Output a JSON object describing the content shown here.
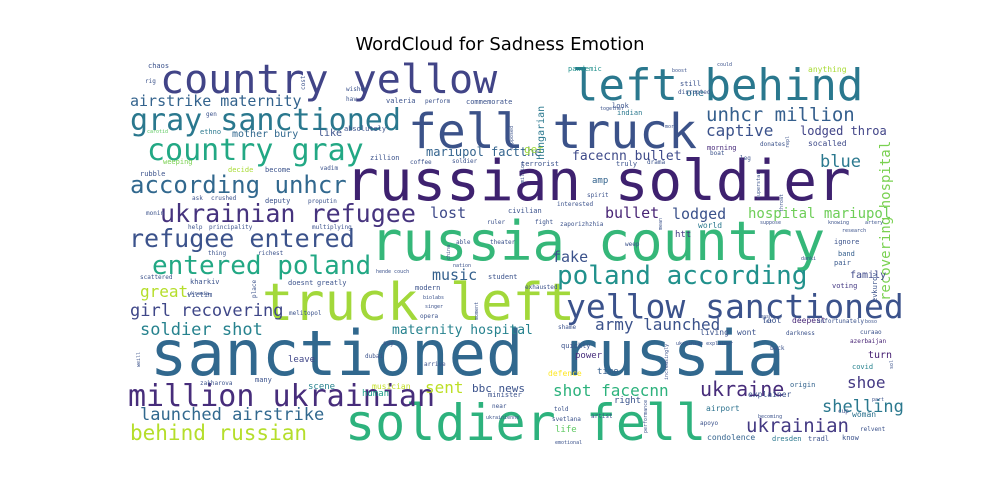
{
  "chart_data": {
    "type": "wordcloud",
    "title": "WordCloud for Sadness Emotion",
    "colormap": "viridis",
    "background": "#ffffff",
    "words": [
      {
        "text": "sanctioned russia",
        "weight": 1.0,
        "color": "#31688e"
      },
      {
        "text": "russian soldier",
        "weight": 0.92,
        "color": "#3e216f"
      },
      {
        "text": "russia country",
        "weight": 0.9,
        "color": "#35b779"
      },
      {
        "text": "truck left",
        "weight": 0.86,
        "color": "#a2d83a"
      },
      {
        "text": "soldier fell",
        "weight": 0.83,
        "color": "#2db27d"
      },
      {
        "text": "fell truck",
        "weight": 0.78,
        "color": "#3b5289"
      },
      {
        "text": "left behind",
        "weight": 0.72,
        "color": "#2a788e"
      },
      {
        "text": "country yellow",
        "weight": 0.66,
        "color": "#414487"
      },
      {
        "text": "yellow sanctioned",
        "weight": 0.55,
        "color": "#3b528b"
      },
      {
        "text": "million ukrainian",
        "weight": 0.5,
        "color": "#472d7b"
      },
      {
        "text": "country gray",
        "weight": 0.5,
        "color": "#22a884"
      },
      {
        "text": "gray sanctioned",
        "weight": 0.5,
        "color": "#2a788e"
      },
      {
        "text": "poland according",
        "weight": 0.44,
        "color": "#21918c"
      },
      {
        "text": "entered poland",
        "weight": 0.44,
        "color": "#22a884"
      },
      {
        "text": "refugee entered",
        "weight": 0.42,
        "color": "#3b528b"
      },
      {
        "text": "ukrainian refugee",
        "weight": 0.41,
        "color": "#46337e"
      },
      {
        "text": "according unhcr",
        "weight": 0.4,
        "color": "#31688e"
      },
      {
        "text": "behind russian",
        "weight": 0.35,
        "color": "#b5de2b"
      },
      {
        "text": "unhcr million",
        "weight": 0.32,
        "color": "#355f8d"
      },
      {
        "text": "ukraine",
        "weight": 0.33,
        "color": "#472c7a"
      },
      {
        "text": "ukrainian",
        "weight": 0.32,
        "color": "#443a83"
      },
      {
        "text": "girl recovering",
        "weight": 0.29,
        "color": "#3f4788"
      },
      {
        "text": "soldier shot",
        "weight": 0.29,
        "color": "#26828e"
      },
      {
        "text": "launched airstrike",
        "weight": 0.28,
        "color": "#31688e"
      },
      {
        "text": "shelling",
        "weight": 0.29,
        "color": "#2a788e"
      },
      {
        "text": "blue",
        "weight": 0.29,
        "color": "#2a788e"
      },
      {
        "text": "captive",
        "weight": 0.28,
        "color": "#3b528b"
      },
      {
        "text": "great",
        "weight": 0.26,
        "color": "#b5de2b"
      },
      {
        "text": "sent",
        "weight": 0.26,
        "color": "#bddf26"
      },
      {
        "text": "shoe",
        "weight": 0.26,
        "color": "#443983"
      },
      {
        "text": "shot facecnn",
        "weight": 0.26,
        "color": "#2db27d"
      },
      {
        "text": "army launched",
        "weight": 0.26,
        "color": "#3b528b"
      },
      {
        "text": "airstrike maternity",
        "weight": 0.25,
        "color": "#33638d"
      },
      {
        "text": "lost",
        "weight": 0.25,
        "color": "#3e4989"
      },
      {
        "text": "lodged",
        "weight": 0.25,
        "color": "#3b528b"
      },
      {
        "text": "bullet",
        "weight": 0.25,
        "color": "#482475"
      },
      {
        "text": "fake",
        "weight": 0.25,
        "color": "#3b528b"
      },
      {
        "text": "music",
        "weight": 0.25,
        "color": "#34608d"
      },
      {
        "text": "hospital mariupol",
        "weight": 0.23,
        "color": "#6ece58"
      },
      {
        "text": "recovering hospital",
        "weight": 0.23,
        "color": "#7ad151"
      },
      {
        "text": "maternity hospital",
        "weight": 0.22,
        "color": "#26828e"
      },
      {
        "text": "facecnn bullet",
        "weight": 0.22,
        "color": "#3e4a89"
      },
      {
        "text": "lodged throa",
        "weight": 0.21,
        "color": "#414487"
      },
      {
        "text": "mariupol factthe",
        "weight": 0.21,
        "color": "#33638d"
      },
      {
        "text": "bbc news",
        "weight": 0.19,
        "color": "#3b528b"
      },
      {
        "text": "get",
        "weight": 0.18,
        "color": "#a0da39"
      },
      {
        "text": "hungarian",
        "weight": 0.16,
        "color": "#2a788e"
      },
      {
        "text": "turn",
        "weight": 0.16,
        "color": "#482173"
      },
      {
        "text": "mother bury",
        "weight": 0.16,
        "color": "#31688e"
      },
      {
        "text": "like",
        "weight": 0.16,
        "color": "#3b528b"
      },
      {
        "text": "one",
        "weight": 0.16,
        "color": "#2c728e"
      },
      {
        "text": "family",
        "weight": 0.16,
        "color": "#3e4989"
      },
      {
        "text": "leave",
        "weight": 0.15,
        "color": "#404688"
      },
      {
        "text": "time",
        "weight": 0.15,
        "color": "#355f8d"
      },
      {
        "text": "power",
        "weight": 0.15,
        "color": "#472d7b"
      },
      {
        "text": "right",
        "weight": 0.15,
        "color": "#3a548c"
      },
      {
        "text": "life",
        "weight": 0.15,
        "color": "#5ec962"
      },
      {
        "text": "scene",
        "weight": 0.14,
        "color": "#26828e"
      },
      {
        "text": "amp",
        "weight": 0.14,
        "color": "#33638d"
      },
      {
        "text": "htt",
        "weight": 0.14,
        "color": "#443a83"
      },
      {
        "text": "human",
        "weight": 0.14,
        "color": "#1fa088"
      },
      {
        "text": "musician",
        "weight": 0.13,
        "color": "#c2df23"
      },
      {
        "text": "airport",
        "weight": 0.13,
        "color": "#2c728e"
      },
      {
        "text": "defence",
        "weight": 0.13,
        "color": "#fde725"
      },
      {
        "text": "explainer",
        "weight": 0.13,
        "color": "#3b528b"
      },
      {
        "text": "anything",
        "weight": 0.13,
        "color": "#a8db34"
      },
      {
        "text": "indian",
        "weight": 0.12,
        "color": "#2a788e"
      },
      {
        "text": "morning",
        "weight": 0.12,
        "color": "#472a7a"
      },
      {
        "text": "pandemic",
        "weight": 0.11,
        "color": "#21918c"
      },
      {
        "text": "deepest",
        "weight": 0.13,
        "color": "#482878"
      },
      {
        "text": "foot",
        "weight": 0.13,
        "color": "#3b528b"
      },
      {
        "text": "socalled",
        "weight": 0.12,
        "color": "#3e4a89"
      },
      {
        "text": "ignore",
        "weight": 0.12,
        "color": "#3b528b"
      },
      {
        "text": "band",
        "weight": 0.12,
        "color": "#355f8d"
      },
      {
        "text": "pair",
        "weight": 0.12,
        "color": "#38588c"
      },
      {
        "text": "voting",
        "weight": 0.12,
        "color": "#443983"
      },
      {
        "text": "evkurov",
        "weight": 0.11,
        "color": "#3b528b"
      },
      {
        "text": "world",
        "weight": 0.12,
        "color": "#2a788e"
      },
      {
        "text": "living",
        "weight": 0.12,
        "color": "#3b528b"
      },
      {
        "text": "wont",
        "weight": 0.12,
        "color": "#3b528b"
      },
      {
        "text": "woman",
        "weight": 0.12,
        "color": "#2c728e"
      },
      {
        "text": "covid",
        "weight": 0.11,
        "color": "#26828e"
      },
      {
        "text": "origin",
        "weight": 0.11,
        "color": "#33638d"
      },
      {
        "text": "know",
        "weight": 0.11,
        "color": "#3b528b"
      },
      {
        "text": "relvent",
        "weight": 0.1,
        "color": "#3b528b"
      },
      {
        "text": "curaao",
        "weight": 0.1,
        "color": "#3b528b"
      },
      {
        "text": "azerbaijan",
        "weight": 0.1,
        "color": "#482475"
      },
      {
        "text": "condolence",
        "weight": 0.11,
        "color": "#33638d"
      },
      {
        "text": "dresden",
        "weight": 0.11,
        "color": "#2a788e"
      },
      {
        "text": "tradl",
        "weight": 0.11,
        "color": "#3b528b"
      },
      {
        "text": "ukrainian explainer",
        "weight": 0.08,
        "color": "#3b528b"
      },
      {
        "text": "chaos",
        "weight": 0.1,
        "color": "#3b528b"
      },
      {
        "text": "rig",
        "weight": 0.09,
        "color": "#3b528b"
      },
      {
        "text": "gen",
        "weight": 0.08,
        "color": "#3b528b"
      },
      {
        "text": "carotid",
        "weight": 0.08,
        "color": "#5ec962"
      },
      {
        "text": "ethno",
        "weight": 0.1,
        "color": "#2a788e"
      },
      {
        "text": "weeping",
        "weight": 0.1,
        "color": "#7ad151"
      },
      {
        "text": "rubble",
        "weight": 0.1,
        "color": "#3b528b"
      },
      {
        "text": "decide",
        "weight": 0.1,
        "color": "#a8db34"
      },
      {
        "text": "become",
        "weight": 0.1,
        "color": "#3b528b"
      },
      {
        "text": "vadim",
        "weight": 0.09,
        "color": "#3b528b"
      },
      {
        "text": "ask",
        "weight": 0.09,
        "color": "#3b528b"
      },
      {
        "text": "crushed",
        "weight": 0.09,
        "color": "#3b528b"
      },
      {
        "text": "monin",
        "weight": 0.09,
        "color": "#3b528b"
      },
      {
        "text": "deputy",
        "weight": 0.1,
        "color": "#3b528b"
      },
      {
        "text": "proputin",
        "weight": 0.09,
        "color": "#3b528b"
      },
      {
        "text": "multiplying",
        "weight": 0.09,
        "color": "#3b528b"
      },
      {
        "text": "help",
        "weight": 0.08,
        "color": "#3b528b"
      },
      {
        "text": "principality",
        "weight": 0.08,
        "color": "#3b528b"
      },
      {
        "text": "thing",
        "weight": 0.08,
        "color": "#3b528b"
      },
      {
        "text": "richest",
        "weight": 0.09,
        "color": "#3b528b"
      },
      {
        "text": "kharkiv",
        "weight": 0.1,
        "color": "#3b528b"
      },
      {
        "text": "scattered",
        "weight": 0.09,
        "color": "#3b528b"
      },
      {
        "text": "victim",
        "weight": 0.1,
        "color": "#3b528b"
      },
      {
        "text": "ukrania",
        "weight": 0.08,
        "color": "#3b528b"
      },
      {
        "text": "doesnt",
        "weight": 0.1,
        "color": "#3b528b"
      },
      {
        "text": "greatly",
        "weight": 0.1,
        "color": "#3b528b"
      },
      {
        "text": "melitopol",
        "weight": 0.09,
        "color": "#3b528b"
      },
      {
        "text": "zakharova",
        "weight": 0.08,
        "color": "#3b528b"
      },
      {
        "text": "many",
        "weight": 0.1,
        "color": "#3b528b"
      },
      {
        "text": "place",
        "weight": 0.09,
        "color": "#3b528b"
      },
      {
        "text": "weill",
        "weight": 0.08,
        "color": "#3b528b"
      },
      {
        "text": "cost",
        "weight": 0.08,
        "color": "#3b528b"
      },
      {
        "text": "hav",
        "weight": 0.08,
        "color": "#3b528b"
      },
      {
        "text": "wished",
        "weight": 0.08,
        "color": "#3b528b"
      },
      {
        "text": "valeria",
        "weight": 0.09,
        "color": "#3b528b"
      },
      {
        "text": "perform",
        "weight": 0.09,
        "color": "#3b528b"
      },
      {
        "text": "commemorate",
        "weight": 0.1,
        "color": "#3b528b"
      },
      {
        "text": "absolutely",
        "weight": 0.09,
        "color": "#3b528b"
      },
      {
        "text": "zillion",
        "weight": 0.09,
        "color": "#3b528b"
      },
      {
        "text": "coffee",
        "weight": 0.09,
        "color": "#3b528b"
      },
      {
        "text": "supposed",
        "weight": 0.08,
        "color": "#3b528b"
      },
      {
        "text": "soldier",
        "weight": 0.09,
        "color": "#3b528b"
      },
      {
        "text": "terrorist",
        "weight": 0.1,
        "color": "#3b528b"
      },
      {
        "text": "million",
        "weight": 0.08,
        "color": "#3b528b"
      },
      {
        "text": "truly",
        "weight": 0.1,
        "color": "#3b528b"
      },
      {
        "text": "drama",
        "weight": 0.09,
        "color": "#3b528b"
      },
      {
        "text": "spirit",
        "weight": 0.09,
        "color": "#3b528b"
      },
      {
        "text": "interested",
        "weight": 0.08,
        "color": "#3b528b"
      },
      {
        "text": "civilian",
        "weight": 0.09,
        "color": "#3b528b"
      },
      {
        "text": "ruler",
        "weight": 0.09,
        "color": "#3b528b"
      },
      {
        "text": "fight",
        "weight": 0.09,
        "color": "#3b528b"
      },
      {
        "text": "zaporizhzhia",
        "weight": 0.09,
        "color": "#3b528b"
      },
      {
        "text": "able",
        "weight": 0.09,
        "color": "#3b528b"
      },
      {
        "text": "theater",
        "weight": 0.09,
        "color": "#3b528b"
      },
      {
        "text": "china",
        "weight": 0.08,
        "color": "#3b528b"
      },
      {
        "text": "hende couch",
        "weight": 0.08,
        "color": "#3b528b"
      },
      {
        "text": "nation",
        "weight": 0.08,
        "color": "#3b528b"
      },
      {
        "text": "student",
        "weight": 0.1,
        "color": "#3b528b"
      },
      {
        "text": "biolabs",
        "weight": 0.08,
        "color": "#3b528b"
      },
      {
        "text": "singer",
        "weight": 0.08,
        "color": "#3b528b"
      },
      {
        "text": "modern",
        "weight": 0.09,
        "color": "#3b528b"
      },
      {
        "text": "exhausted",
        "weight": 0.09,
        "color": "#3b528b"
      },
      {
        "text": "opera",
        "weight": 0.09,
        "color": "#3b528b"
      },
      {
        "text": "moment",
        "weight": 0.08,
        "color": "#3b528b"
      },
      {
        "text": "weep",
        "weight": 0.09,
        "color": "#3b528b"
      },
      {
        "text": "mean",
        "weight": 0.08,
        "color": "#3b528b"
      },
      {
        "text": "say",
        "weight": 0.09,
        "color": "#3b528b"
      },
      {
        "text": "dubai",
        "weight": 0.09,
        "color": "#3b528b"
      },
      {
        "text": "shame",
        "weight": 0.09,
        "color": "#3b528b"
      },
      {
        "text": "svetlana",
        "weight": 0.09,
        "color": "#3b528b"
      },
      {
        "text": "artist",
        "weight": 0.09,
        "color": "#3b528b"
      },
      {
        "text": "quickly",
        "weight": 0.1,
        "color": "#3b528b"
      },
      {
        "text": "minister",
        "weight": 0.1,
        "color": "#3b528b"
      },
      {
        "text": "near",
        "weight": 0.1,
        "color": "#3b528b"
      },
      {
        "text": "told",
        "weight": 0.09,
        "color": "#3b528b"
      },
      {
        "text": "ukrainienne",
        "weight": 0.08,
        "color": "#3b528b"
      },
      {
        "text": "emotional",
        "weight": 0.08,
        "color": "#3b528b"
      },
      {
        "text": "arrive",
        "weight": 0.09,
        "color": "#3b528b"
      },
      {
        "text": "increasingly",
        "weight": 0.08,
        "color": "#3b528b"
      },
      {
        "text": "performance",
        "weight": 0.08,
        "color": "#3b528b"
      },
      {
        "text": "apoyo",
        "weight": 0.08,
        "color": "#3b528b"
      },
      {
        "text": "becoming",
        "weight": 0.08,
        "color": "#3b528b"
      },
      {
        "text": "cup",
        "weight": 0.08,
        "color": "#3b528b"
      },
      {
        "text": "part",
        "weight": 0.08,
        "color": "#3b528b"
      },
      {
        "text": "sol",
        "weight": 0.08,
        "color": "#3b528b"
      },
      {
        "text": "unfortunately",
        "weight": 0.09,
        "color": "#3b528b"
      },
      {
        "text": "boso",
        "weight": 0.08,
        "color": "#3b528b"
      },
      {
        "text": "darkness",
        "weight": 0.09,
        "color": "#3b528b"
      },
      {
        "text": "back",
        "weight": 0.09,
        "color": "#3b528b"
      },
      {
        "text": "masha",
        "weight": 0.09,
        "color": "#3b528b"
      },
      {
        "text": "let",
        "weight": 0.08,
        "color": "#3b528b"
      },
      {
        "text": "danki",
        "weight": 0.08,
        "color": "#3b528b"
      },
      {
        "text": "research",
        "weight": 0.08,
        "color": "#3b528b"
      },
      {
        "text": "knowing",
        "weight": 0.08,
        "color": "#3b528b"
      },
      {
        "text": "artery",
        "weight": 0.08,
        "color": "#3b528b"
      },
      {
        "text": "suppose",
        "weight": 0.08,
        "color": "#3b528b"
      },
      {
        "text": "throat",
        "weight": 0.08,
        "color": "#3b528b"
      },
      {
        "text": "superstar",
        "weight": 0.08,
        "color": "#3b528b"
      },
      {
        "text": "leg",
        "weight": 0.09,
        "color": "#3b528b"
      },
      {
        "text": "boat",
        "weight": 0.09,
        "color": "#3b528b"
      },
      {
        "text": "donates",
        "weight": 0.09,
        "color": "#3b528b"
      },
      {
        "text": "repl",
        "weight": 0.08,
        "color": "#3b528b"
      },
      {
        "text": "mort",
        "weight": 0.08,
        "color": "#3b528b"
      },
      {
        "text": "look",
        "weight": 0.09,
        "color": "#3b528b"
      },
      {
        "text": "still",
        "weight": 0.1,
        "color": "#3b528b"
      },
      {
        "text": "disrupted",
        "weight": 0.09,
        "color": "#3b528b"
      },
      {
        "text": "together",
        "weight": 0.08,
        "color": "#3b528b"
      },
      {
        "text": "could",
        "weight": 0.08,
        "color": "#3b528b"
      },
      {
        "text": "boost",
        "weight": 0.08,
        "color": "#3b528b"
      }
    ]
  }
}
